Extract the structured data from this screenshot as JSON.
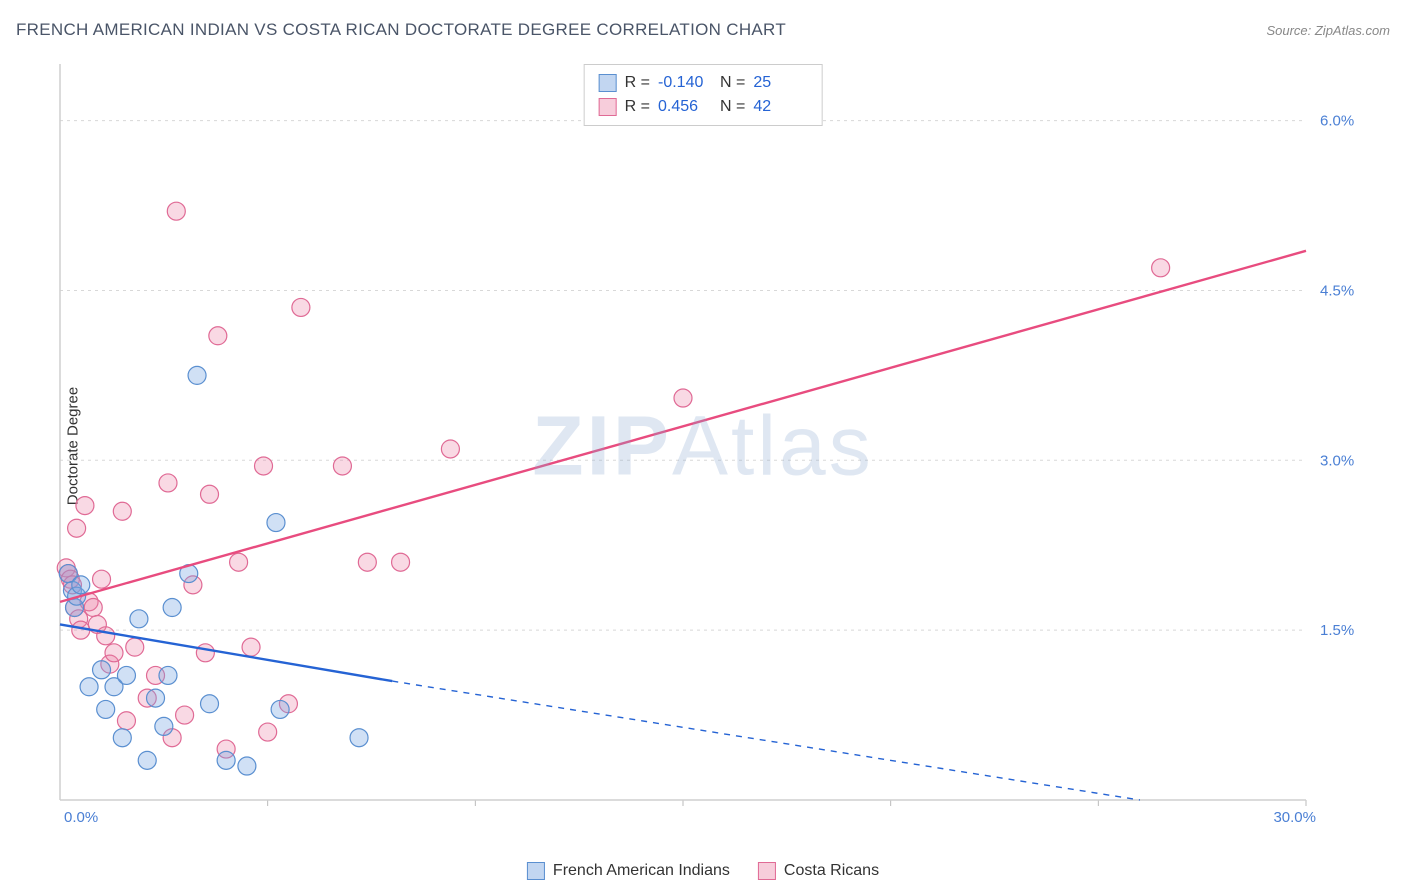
{
  "header": {
    "title": "FRENCH AMERICAN INDIAN VS COSTA RICAN DOCTORATE DEGREE CORRELATION CHART",
    "source": "Source: ZipAtlas.com"
  },
  "watermark": {
    "bold": "ZIP",
    "rest": "Atlas"
  },
  "chart": {
    "type": "scatter-with-trend",
    "ylabel": "Doctorate Degree",
    "xlim": [
      0,
      30
    ],
    "ylim": [
      0,
      6.5
    ],
    "x_ticks": [
      0,
      30
    ],
    "x_tick_labels": [
      "0.0%",
      "30.0%"
    ],
    "y_ticks": [
      1.5,
      3.0,
      4.5,
      6.0
    ],
    "y_tick_labels": [
      "1.5%",
      "3.0%",
      "4.5%",
      "6.0%"
    ],
    "x_gridlines": [
      5,
      10,
      15,
      20,
      25,
      30
    ],
    "y_gridlines": [
      1.5,
      3.0,
      4.5,
      6.0
    ],
    "grid_color": "#d8d8d8",
    "grid_dash": "3,4",
    "axis_color": "#cfcfcf",
    "tick_color": "#bbbbbb",
    "background_color": "#ffffff",
    "tick_label_color": "#4a7fd4",
    "tick_label_fontsize": 15,
    "marker_radius": 9,
    "marker_stroke_width": 1.2,
    "trend_line_width": 2.4
  },
  "series": [
    {
      "name": "French American Indians",
      "fill": "rgba(120,165,225,0.35)",
      "stroke": "#5a8fd0",
      "swatch_fill": "rgba(120,165,225,0.45)",
      "swatch_border": "#5a8fd0",
      "trend_color": "#2563d4",
      "trend_from": [
        0,
        1.55
      ],
      "trend_to_solid": [
        8.0,
        1.05
      ],
      "trend_to_dashed": [
        26.0,
        0.0
      ],
      "stats": {
        "R": "-0.140",
        "N": "25"
      },
      "points": [
        [
          0.2,
          2.0
        ],
        [
          0.3,
          1.85
        ],
        [
          0.35,
          1.7
        ],
        [
          0.4,
          1.8
        ],
        [
          0.5,
          1.9
        ],
        [
          0.7,
          1.0
        ],
        [
          1.0,
          1.15
        ],
        [
          1.1,
          0.8
        ],
        [
          1.3,
          1.0
        ],
        [
          1.5,
          0.55
        ],
        [
          1.6,
          1.1
        ],
        [
          1.9,
          1.6
        ],
        [
          2.1,
          0.35
        ],
        [
          2.3,
          0.9
        ],
        [
          2.5,
          0.65
        ],
        [
          2.6,
          1.1
        ],
        [
          2.7,
          1.7
        ],
        [
          3.1,
          2.0
        ],
        [
          3.3,
          3.75
        ],
        [
          3.6,
          0.85
        ],
        [
          4.0,
          0.35
        ],
        [
          4.5,
          0.3
        ],
        [
          5.2,
          2.45
        ],
        [
          5.3,
          0.8
        ],
        [
          7.2,
          0.55
        ]
      ]
    },
    {
      "name": "Costa Ricans",
      "fill": "rgba(235,130,165,0.30)",
      "stroke": "#e06a95",
      "swatch_fill": "rgba(235,130,165,0.40)",
      "swatch_border": "#e06a95",
      "trend_color": "#e84c7f",
      "trend_from": [
        0,
        1.75
      ],
      "trend_to_solid": [
        30,
        4.85
      ],
      "trend_to_dashed": null,
      "stats": {
        "R": "0.456",
        "N": "42"
      },
      "points": [
        [
          0.15,
          2.05
        ],
        [
          0.2,
          2.0
        ],
        [
          0.25,
          1.95
        ],
        [
          0.3,
          1.9
        ],
        [
          0.35,
          1.7
        ],
        [
          0.4,
          2.4
        ],
        [
          0.45,
          1.6
        ],
        [
          0.5,
          1.5
        ],
        [
          0.6,
          2.6
        ],
        [
          0.7,
          1.75
        ],
        [
          0.8,
          1.7
        ],
        [
          0.9,
          1.55
        ],
        [
          1.0,
          1.95
        ],
        [
          1.1,
          1.45
        ],
        [
          1.2,
          1.2
        ],
        [
          1.3,
          1.3
        ],
        [
          1.5,
          2.55
        ],
        [
          1.6,
          0.7
        ],
        [
          1.8,
          1.35
        ],
        [
          2.1,
          0.9
        ],
        [
          2.3,
          1.1
        ],
        [
          2.6,
          2.8
        ],
        [
          2.7,
          0.55
        ],
        [
          2.8,
          5.2
        ],
        [
          3.0,
          0.75
        ],
        [
          3.2,
          1.9
        ],
        [
          3.5,
          1.3
        ],
        [
          3.6,
          2.7
        ],
        [
          3.8,
          4.1
        ],
        [
          4.0,
          0.45
        ],
        [
          4.3,
          2.1
        ],
        [
          4.6,
          1.35
        ],
        [
          4.9,
          2.95
        ],
        [
          5.0,
          0.6
        ],
        [
          5.5,
          0.85
        ],
        [
          5.8,
          4.35
        ],
        [
          6.8,
          2.95
        ],
        [
          7.4,
          2.1
        ],
        [
          8.2,
          2.1
        ],
        [
          9.4,
          3.1
        ],
        [
          15.0,
          3.55
        ],
        [
          26.5,
          4.7
        ]
      ]
    }
  ],
  "stats_box": {
    "label_R": "R =",
    "label_N": "N ="
  },
  "bottom_legend": {
    "items": [
      "French American Indians",
      "Costa Ricans"
    ]
  }
}
